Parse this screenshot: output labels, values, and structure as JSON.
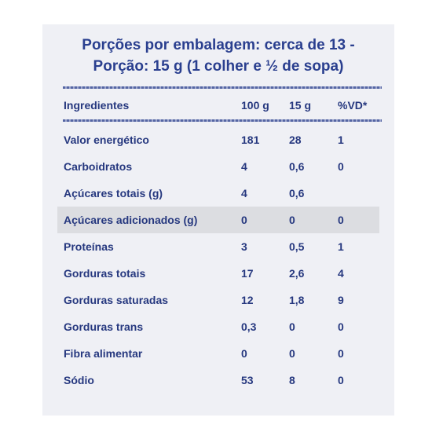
{
  "title": {
    "line1": "Porções por embalagem: cerca de 13 -",
    "line2": "Porção: 15 g (1 colher e ½ de sopa)"
  },
  "table": {
    "headers": [
      "Ingredientes",
      "100 g",
      "15 g",
      "%VD*"
    ],
    "rows": [
      [
        "Valor energético",
        "181",
        "28",
        "1"
      ],
      [
        "Carboidratos",
        "4",
        "0,6",
        "0"
      ],
      [
        "Açúcares totais (g)",
        "4",
        "0,6",
        ""
      ],
      [
        "Açúcares adicionados (g)",
        "0",
        "0",
        "0"
      ],
      [
        "Proteínas",
        "3",
        "0,5",
        "1"
      ],
      [
        "Gorduras totais",
        "17",
        "2,6",
        "4"
      ],
      [
        "Gorduras saturadas",
        "12",
        "1,8",
        "9"
      ],
      [
        "Gorduras trans",
        "0,3",
        "0",
        "0"
      ],
      [
        "Fibra alimentar",
        "0",
        "0",
        "0"
      ],
      [
        "Sódio",
        "53",
        "8",
        "0"
      ]
    ],
    "shaded_row_index": 3
  },
  "colors": {
    "text": "#26387f",
    "panel_background": "#eff0f5",
    "shaded_row": "#dcdde1"
  }
}
